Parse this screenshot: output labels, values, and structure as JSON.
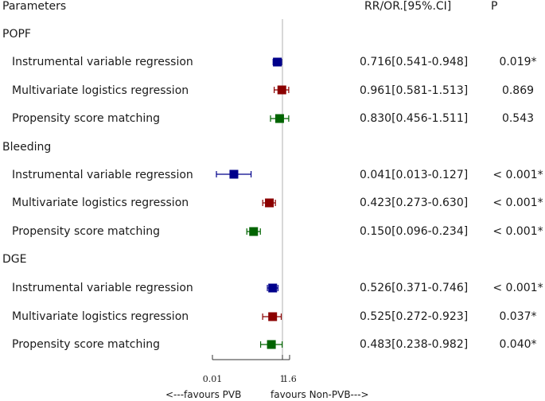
{
  "header": {
    "parameters": "Parameters",
    "estimate": "RR/OR.[95%.CI]",
    "p": "P"
  },
  "groups": [
    {
      "name": "POPF",
      "rows": [
        {
          "label": "Instrumental variable regression",
          "ci": "0.716[0.541-0.948]",
          "p": "0.019*"
        },
        {
          "label": "Multivariate logistics regression",
          "ci": "0.961[0.581-1.513]",
          "p": "0.869"
        },
        {
          "label": "Propensity score matching",
          "ci": "0.830[0.456-1.511]",
          "p": "0.543"
        }
      ]
    },
    {
      "name": "Bleeding",
      "rows": [
        {
          "label": "Instrumental variable regression",
          "ci": "0.041[0.013-0.127]",
          "p": "< 0.001*"
        },
        {
          "label": "Multivariate logistics regression",
          "ci": "0.423[0.273-0.630]",
          "p": "< 0.001*"
        },
        {
          "label": "Propensity score matching",
          "ci": "0.150[0.096-0.234]",
          "p": "< 0.001*"
        }
      ]
    },
    {
      "name": "DGE",
      "rows": [
        {
          "label": "Instrumental variable regression",
          "ci": "0.526[0.371-0.746]",
          "p": "< 0.001*"
        },
        {
          "label": "Multivariate logistics regression",
          "ci": "0.525[0.272-0.923]",
          "p": "0.037*"
        },
        {
          "label": "Propensity score matching",
          "ci": "0.483[0.238-0.982]",
          "p": "0.040*"
        }
      ]
    }
  ],
  "axis": {
    "ticks": [
      "0.01",
      "1",
      "1.6"
    ],
    "left_label": "<---favours PVB",
    "right_label": "favours Non-PVB--->"
  },
  "colors": {
    "method1": "#00008b",
    "method2": "#8b0000",
    "method3": "#006400",
    "ref_line": "#b0b0b0"
  },
  "chart_data": {
    "type": "forest",
    "scale": "log",
    "reference": 1,
    "xlim": [
      0.01,
      1.6
    ],
    "xticks": [
      0.01,
      1,
      1.6
    ],
    "xlabel_left": "<---favours PVB",
    "xlabel_right": "favours Non-PVB--->",
    "series": [
      {
        "name": "Instrumental variable regression",
        "color": "#00008b",
        "points": [
          {
            "group": "POPF",
            "est": 0.716,
            "lo": 0.541,
            "hi": 0.948
          },
          {
            "group": "Bleeding",
            "est": 0.041,
            "lo": 0.013,
            "hi": 0.127
          },
          {
            "group": "DGE",
            "est": 0.526,
            "lo": 0.371,
            "hi": 0.746
          }
        ]
      },
      {
        "name": "Multivariate logistics regression",
        "color": "#8b0000",
        "points": [
          {
            "group": "POPF",
            "est": 0.961,
            "lo": 0.581,
            "hi": 1.513
          },
          {
            "group": "Bleeding",
            "est": 0.423,
            "lo": 0.273,
            "hi": 0.63
          },
          {
            "group": "DGE",
            "est": 0.525,
            "lo": 0.272,
            "hi": 0.923
          }
        ]
      },
      {
        "name": "Propensity score matching",
        "color": "#006400",
        "points": [
          {
            "group": "POPF",
            "est": 0.83,
            "lo": 0.456,
            "hi": 1.511
          },
          {
            "group": "Bleeding",
            "est": 0.15,
            "lo": 0.096,
            "hi": 0.234
          },
          {
            "group": "DGE",
            "est": 0.483,
            "lo": 0.238,
            "hi": 0.982
          }
        ]
      }
    ]
  }
}
